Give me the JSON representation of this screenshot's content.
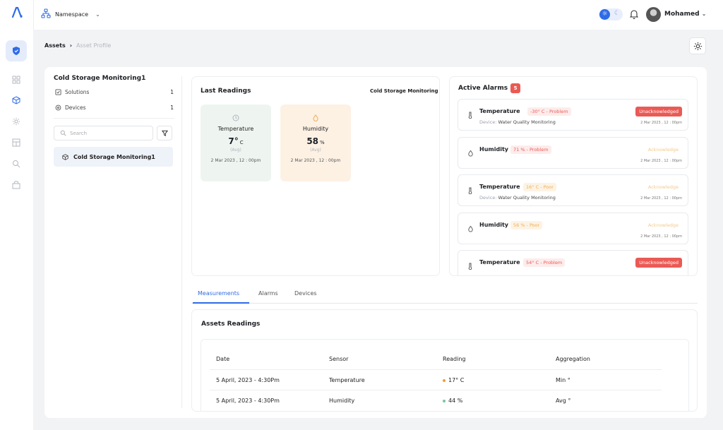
{
  "header": {
    "namespace_label": "Namespace",
    "user_name": "Mohamed"
  },
  "breadcrumb": {
    "current": "Assets",
    "sub": "Asset Profile"
  },
  "left_panel": {
    "title": "Cold Storage Monitoring1",
    "solutions_label": "Solutions",
    "solutions_count": "1",
    "devices_label": "Devices",
    "devices_count": "1",
    "search_placeholder": "Search",
    "tree_item": "Cold Storage Monitoring1"
  },
  "last_readings": {
    "title": "Last Readings",
    "asset_name": "Cold Storage Monitoring",
    "tiles": [
      {
        "name": "Temperature",
        "value": "7°",
        "unit": "C",
        "agg": "(Avg)",
        "time": "2 Mar 2023 , 12 : 00pm",
        "color": "#eef5f1"
      },
      {
        "name": "Humidity",
        "value": "58",
        "unit": "%",
        "agg": "(Avg)",
        "time": "2 Mar 2023 , 12 : 00pm",
        "color": "#fdf1e4"
      }
    ]
  },
  "active_alarms": {
    "title": "Active Alarms",
    "count": "5",
    "items": [
      {
        "icon": "thermometer-icon",
        "sensor": "Temperature",
        "tag": "-30° C - Problem",
        "severity": "red",
        "device_label": "Device:",
        "device": "Water Quality Monitoring",
        "action": "Unacknowledged",
        "time": "2 Mar 2023 , 12 : 00pm"
      },
      {
        "icon": "humidity-icon",
        "sensor": "Humidity",
        "tag": "71 % - Problem",
        "severity": "red",
        "device_label": "",
        "device": "",
        "action": "Acknowledge",
        "time": "2 Mar 2023 , 12 : 00pm"
      },
      {
        "icon": "thermometer-icon",
        "sensor": "Temperature",
        "tag": "16° C - Poor",
        "severity": "orange",
        "device_label": "Device:",
        "device": "Water Quality Monitoring",
        "action": "Acknowledge",
        "time": "2 Mar 2023 , 12 : 00pm"
      },
      {
        "icon": "humidity-icon",
        "sensor": "Humidity",
        "tag": "56 % - Poor",
        "severity": "orange",
        "device_label": "",
        "device": "",
        "action": "Acknowledge",
        "time": "2 Mar 2023 , 12 : 00pm"
      },
      {
        "icon": "thermometer-icon",
        "sensor": "Temperature",
        "tag": "54° C - Problem",
        "severity": "red",
        "device_label": "",
        "device": "",
        "action": "Unacknowledged",
        "time": ""
      }
    ]
  },
  "tabs": [
    "Measurements",
    "Alarms",
    "Devices"
  ],
  "readings_table": {
    "title": "Assets Readings",
    "columns": [
      "Date",
      "Sensor",
      "Reading",
      "Aggregation"
    ],
    "rows": [
      {
        "date": "5 April, 2023 - 4:30Pm",
        "sensor": "Temperature",
        "reading": "17° C",
        "dot": "#efa029",
        "aggregation": "Min °"
      },
      {
        "date": "5 April, 2023 - 4:30Pm",
        "sensor": "Humidity",
        "reading": "44 %",
        "dot": "#7dc3a0",
        "aggregation": "Avg °"
      }
    ]
  },
  "colors": {
    "accent": "#2e6be6",
    "danger": "#ea5a55",
    "warning": "#efae55"
  }
}
